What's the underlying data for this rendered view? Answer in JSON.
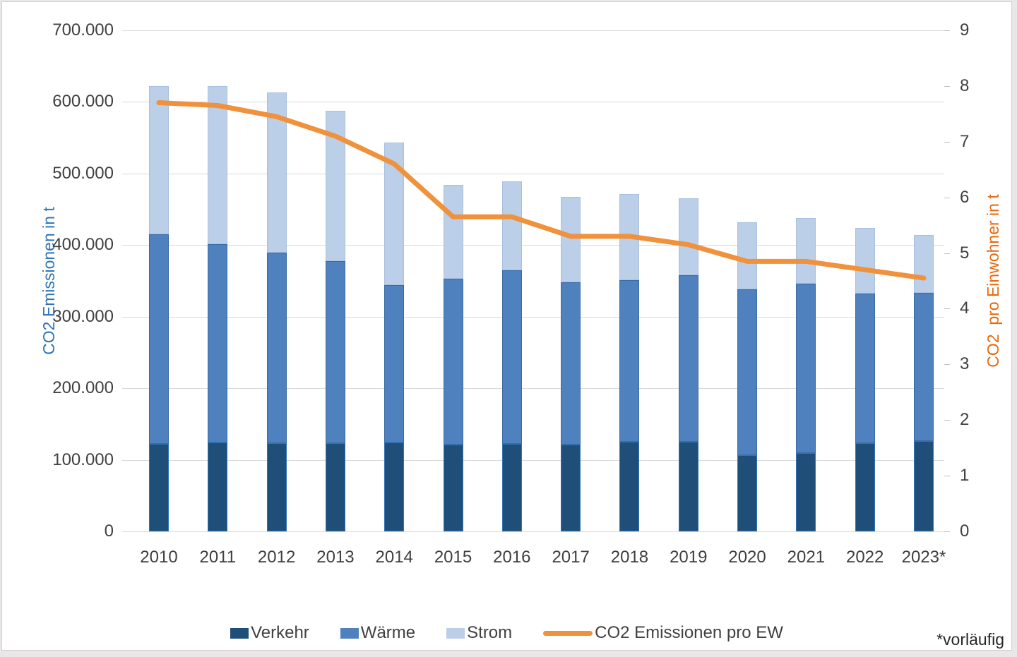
{
  "chart_data": {
    "type": "bar",
    "subtype": "stacked-bar-with-line-combo",
    "title": "",
    "categories": [
      "2010",
      "2011",
      "2012",
      "2013",
      "2014",
      "2015",
      "2016",
      "2017",
      "2018",
      "2019",
      "2020",
      "2021",
      "2022",
      "2023*"
    ],
    "series": [
      {
        "name": "Verkehr",
        "type": "bar",
        "stack": "co2",
        "axis": "left",
        "color": "#1F4E79",
        "border_color": "#2E75B6",
        "values": [
          122000,
          124000,
          123000,
          123000,
          124000,
          121000,
          122000,
          121000,
          125000,
          125000,
          106000,
          109000,
          123000,
          126000
        ]
      },
      {
        "name": "Wärme",
        "type": "bar",
        "stack": "co2",
        "axis": "left",
        "color": "#4E81BD",
        "border_color": "#3A6BA5",
        "values": [
          293000,
          277000,
          266000,
          255000,
          220000,
          232000,
          243000,
          227000,
          226000,
          233000,
          232000,
          237000,
          209000,
          207000
        ]
      },
      {
        "name": "Strom",
        "type": "bar",
        "stack": "co2",
        "axis": "left",
        "color": "#BCCFE8",
        "border_color": "#A8BFDE",
        "values": [
          207000,
          221000,
          224000,
          210000,
          199000,
          131000,
          124000,
          119000,
          120000,
          107000,
          94000,
          92000,
          92000,
          81000
        ]
      },
      {
        "name": "CO2 Emissionen pro EW",
        "type": "line",
        "axis": "right",
        "color": "#F0913C",
        "values": [
          7.7,
          7.65,
          7.45,
          7.1,
          6.6,
          5.65,
          5.65,
          5.3,
          5.3,
          5.15,
          4.85,
          4.85,
          4.7,
          4.55
        ]
      }
    ],
    "stack_totals": [
      622000,
      622000,
      613000,
      588000,
      543000,
      484000,
      489000,
      467000,
      471000,
      465000,
      432000,
      438000,
      424000,
      414000
    ],
    "left_axis": {
      "title": "CO2 Emissionen in t",
      "title_color": "#2E74B5",
      "min": 0,
      "max": 700000,
      "step": 100000,
      "tick_labels": [
        "0",
        "100.000",
        "200.000",
        "300.000",
        "400.000",
        "500.000",
        "600.000",
        "700.000"
      ]
    },
    "right_axis": {
      "title": "CO2  pro Einwohner in t",
      "title_color": "#E8690B",
      "min": 0,
      "max": 9,
      "step": 1,
      "tick_labels": [
        "0",
        "1",
        "2",
        "3",
        "4",
        "5",
        "6",
        "7",
        "8",
        "9"
      ]
    },
    "legend": {
      "position": "bottom",
      "items": [
        {
          "label": "Verkehr",
          "swatch": "bar",
          "color": "#1F4E79"
        },
        {
          "label": "Wärme",
          "swatch": "bar",
          "color": "#4E81BD"
        },
        {
          "label": "Strom",
          "swatch": "bar",
          "color": "#BCCFE8"
        },
        {
          "label": "CO2 Emissionen pro EW",
          "swatch": "line",
          "color": "#F0913C"
        }
      ]
    },
    "footnote": "*vorläufig",
    "grid": true
  }
}
